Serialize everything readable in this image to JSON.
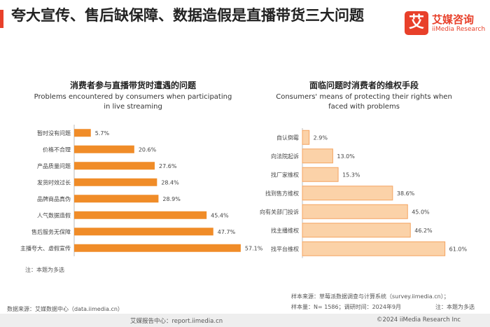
{
  "page": {
    "title": "夸大宣传、售后缺保障、数据造假是直播带货三大问题",
    "accent_color": "#e8402a"
  },
  "logo": {
    "mark": "艾",
    "name_cn": "艾媒咨询",
    "name_en": "iiMedia Research",
    "color": "#e8402a"
  },
  "left": {
    "title_cn": "消费者参与直播带货时遭遇的问题",
    "title_en": "Problems encountered by consumers when participating in live streaming",
    "note": "注：本题为多选"
  },
  "right": {
    "title_cn": "面临问题时消费者的维权手段",
    "title_en": "Consumers' means of protecting their rights when faced with problems",
    "note": "注：本题为多选"
  },
  "sample_lines": [
    "样本来源：草莓派数据调查与计算系统（survey.iimedia.cn）；",
    "样本量：N= 1586；调研时间：2024年9月"
  ],
  "source": "数据来源：艾媒数据中心（data.iimedia.cn）",
  "footer": {
    "left": "艾媒报告中心：report.iimedia.cn",
    "right": "©2024  iiMedia Research  Inc"
  },
  "chart_data": [
    {
      "type": "bar",
      "orientation": "horizontal",
      "title": "消费者参与直播带货时遭遇的问题",
      "subtitle": "Problems encountered by consumers when participating in live streaming",
      "categories": [
        "暂时没有问题",
        "价格不合理",
        "产品质量问题",
        "发货时效过长",
        "品牌商品真伪",
        "人气数据造假",
        "售后服务无保障",
        "主播夸大、虚假宣传"
      ],
      "values": [
        5.7,
        20.6,
        27.6,
        28.4,
        28.9,
        45.4,
        47.7,
        57.1
      ],
      "value_labels": [
        "5.7%",
        "20.6%",
        "27.6%",
        "28.4%",
        "28.9%",
        "45.4%",
        "47.7%",
        "57.1%"
      ],
      "unit": "%",
      "xlim": [
        0,
        60
      ],
      "grid": false,
      "bar_color": "#f08c28"
    },
    {
      "type": "bar",
      "orientation": "horizontal",
      "title": "面临问题时消费者的维权手段",
      "subtitle": "Consumers' means of protecting their rights when faced with problems",
      "categories": [
        "自认倒霉",
        "向法院起诉",
        "找厂家维权",
        "找到售方维权",
        "向有关部门投诉",
        "找主播维权",
        "找平台维权"
      ],
      "values": [
        2.9,
        13.0,
        15.3,
        38.6,
        45.0,
        46.2,
        61.0
      ],
      "value_labels": [
        "2.9%",
        "13.0%",
        "15.3%",
        "38.6%",
        "45.0%",
        "46.2%",
        "61.0%"
      ],
      "unit": "%",
      "xlim": [
        0,
        65
      ],
      "grid": false,
      "bar_color": "#fbd2a8",
      "bar_border_color": "#f4a460"
    }
  ]
}
